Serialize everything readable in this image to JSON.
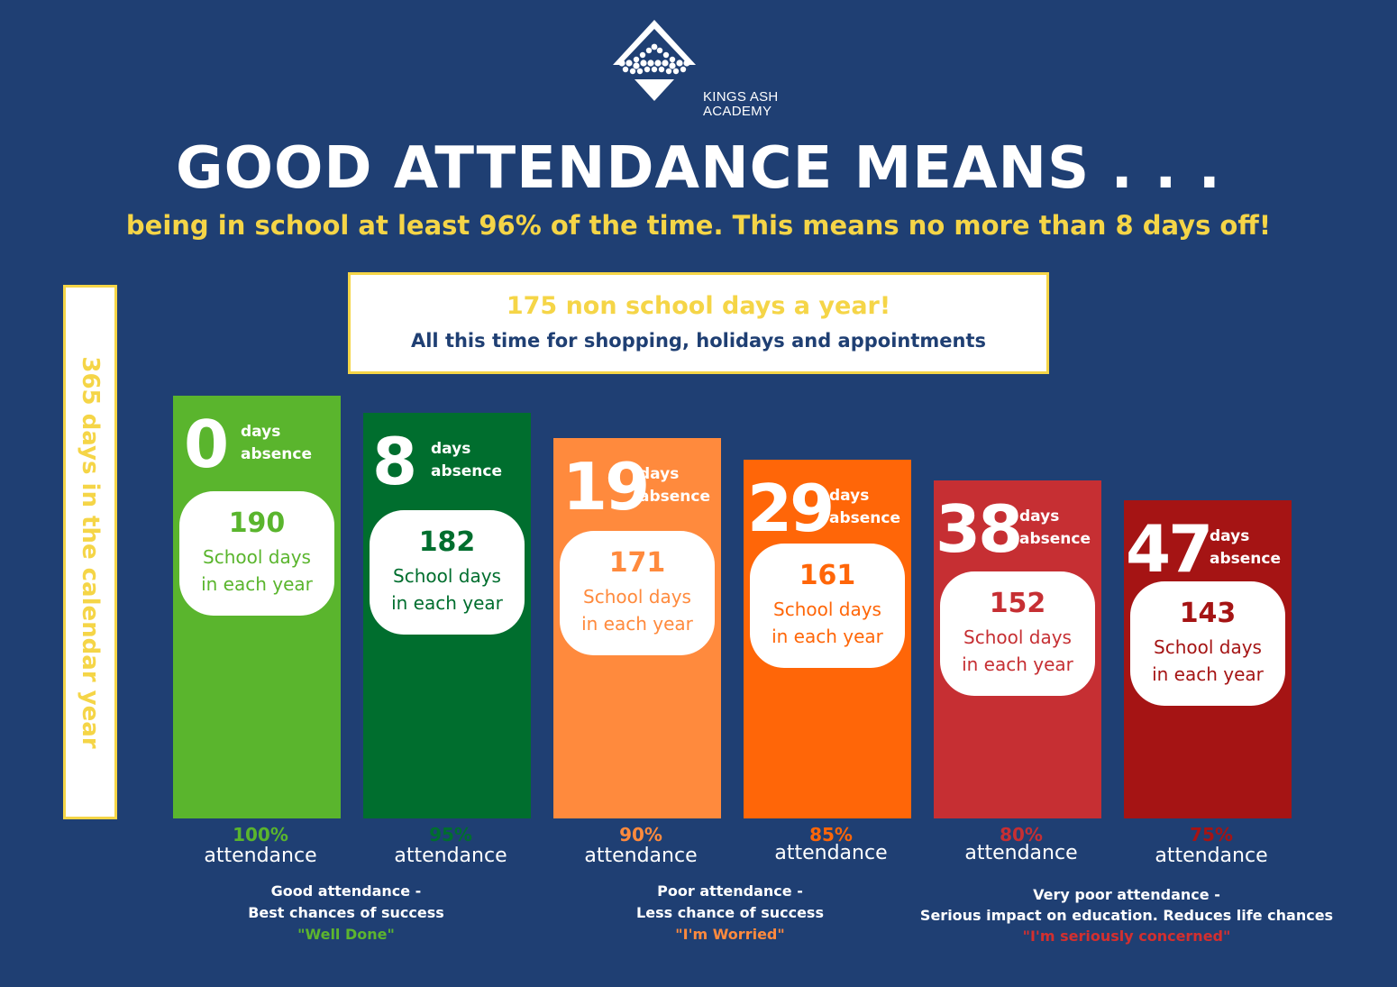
{
  "header": {
    "school_name_line1": "KINGS ASH",
    "school_name_line2": "ACADEMY",
    "title": "GOOD ATTENDANCE MEANS . . .",
    "subtitle": "being in school at least 96% of the time. This means no more than 8 days off!"
  },
  "side_label": "365 days in the calendar year",
  "note": {
    "line1": "175 non school days a year!",
    "line2": "All this time for shopping, holidays and appointments"
  },
  "labels": {
    "days": "days",
    "absence": "absence",
    "school_days": "School days",
    "in_each_year": "in each year",
    "attendance": "attendance"
  },
  "categories": [
    {
      "line1": "Good attendance -",
      "line2": "Best chances of success",
      "line3": "\"Well Done\"",
      "color": "#5db52e"
    },
    {
      "line1": "Poor attendance -",
      "line2": "Less chance of success",
      "line3": "\"I'm Worried\"",
      "color": "#ff8a3d"
    },
    {
      "line1": "Very poor attendance -",
      "line2": "Serious impact on education. Reduces life chances",
      "line3": "\"I'm seriously concerned\"",
      "color": "#d32f2f"
    }
  ],
  "chart_data": {
    "type": "bar",
    "categories": [
      "100%",
      "95%",
      "90%",
      "85%",
      "80%",
      "75%"
    ],
    "series": [
      {
        "values": [
          190,
          182,
          171,
          161,
          152,
          143
        ]
      },
      {
        "values": [
          0,
          8,
          19,
          29,
          38,
          47
        ]
      }
    ],
    "bars": [
      {
        "absence": "0",
        "school_days": "190",
        "percent": "100%",
        "bar_color": "#5ab52d",
        "text_color": "#5ab52d"
      },
      {
        "absence": "8",
        "school_days": "182",
        "percent": "95%",
        "bar_color": "#006e2e",
        "text_color": "#006e2e"
      },
      {
        "absence": "19",
        "school_days": "171",
        "percent": "90%",
        "bar_color": "#ff8a3d",
        "text_color": "#ff8a3d"
      },
      {
        "absence": "29",
        "school_days": "161",
        "percent": "85%",
        "bar_color": "#ff6608",
        "text_color": "#ff6608"
      },
      {
        "absence": "38",
        "school_days": "152",
        "percent": "80%",
        "bar_color": "#c62f33",
        "text_color": "#c62f33"
      },
      {
        "absence": "47",
        "school_days": "143",
        "percent": "75%",
        "bar_color": "#a51414",
        "text_color": "#a51414"
      }
    ]
  },
  "colors": {
    "background": "#1f3f73",
    "accent_yellow": "#f5d547",
    "white": "#ffffff"
  }
}
